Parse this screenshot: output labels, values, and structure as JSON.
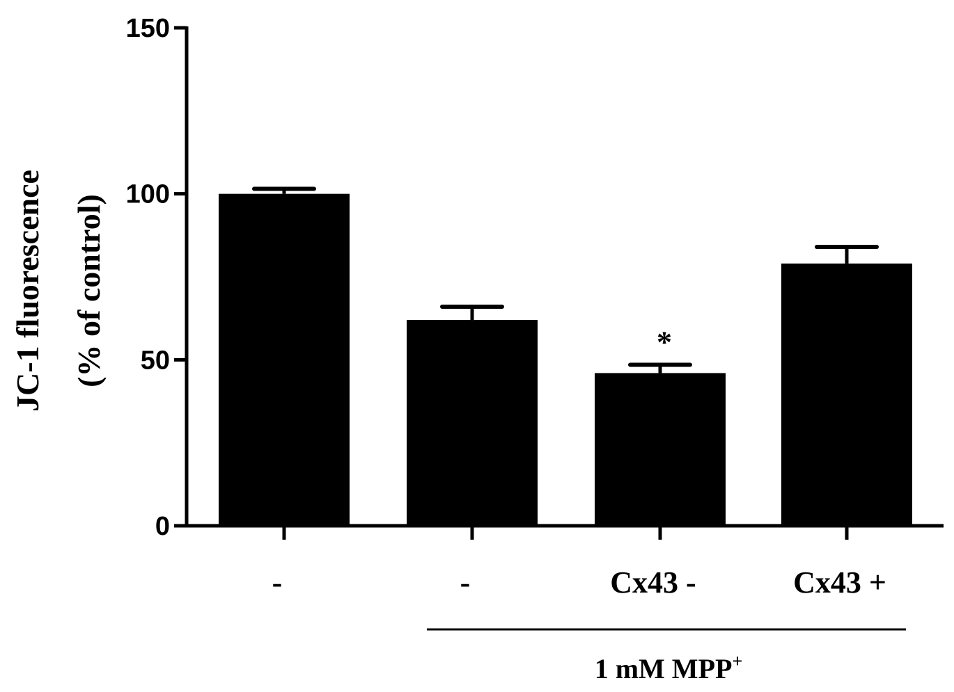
{
  "chart_data": {
    "type": "bar",
    "categories": [
      "-",
      "-",
      "Cx43 -",
      "Cx43  +"
    ],
    "values": [
      100,
      62,
      46,
      79
    ],
    "errors": [
      1.5,
      4,
      2.5,
      5
    ],
    "significance": [
      "",
      "",
      "*",
      ""
    ],
    "ylabel_line1": "JC-1 fluorescence",
    "ylabel_line2": "(% of control)",
    "ylim": [
      0,
      150
    ],
    "yticks": [
      "0",
      "50",
      "100",
      "150"
    ],
    "group_label": "1 mM MPP",
    "group_label_sup": "+",
    "group_span": [
      1,
      3
    ],
    "grid": false,
    "colors": {
      "bar": "#000000",
      "axis": "#000000"
    }
  }
}
